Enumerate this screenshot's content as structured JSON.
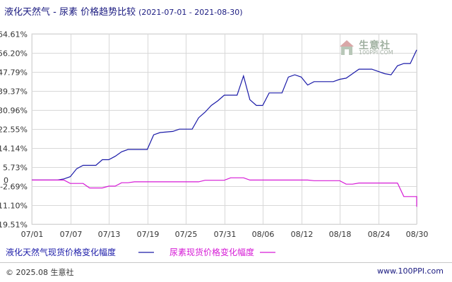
{
  "header": {
    "title": "液化天然气 - 尿素 价格趋势比较",
    "date_range": "(2021-07-01 - 2021-08-30)"
  },
  "watermark": {
    "name": "生意社",
    "url": "100PPI.COM"
  },
  "footer": {
    "copyright": "© 2025.08 生意社",
    "site": "www.100PPI.com"
  },
  "colors": {
    "series1": "#1a1aa8",
    "series2": "#d61ad6",
    "grid": "#d8d8d8",
    "axis": "#555555"
  },
  "chart_data": {
    "type": "line",
    "xlabel": "",
    "ylabel": "",
    "x_ticks": [
      "07/01",
      "07/07",
      "07/13",
      "07/19",
      "07/25",
      "07/31",
      "08/06",
      "08/12",
      "08/18",
      "08/24",
      "08/30"
    ],
    "y_ticks": [
      "64.61%",
      "56.20%",
      "47.79%",
      "39.37%",
      "30.96%",
      "22.55%",
      "14.14%",
      "5.73%",
      "-2.69%",
      "-11.10%",
      "-19.51%"
    ],
    "y_tick_values": [
      64.61,
      56.2,
      47.79,
      39.37,
      30.96,
      22.55,
      14.14,
      5.73,
      -2.69,
      -11.1,
      -19.51
    ],
    "ylim": [
      -19.51,
      64.61
    ],
    "zero_label": "0",
    "x_range_days": 60,
    "grid": true,
    "legend_position": "bottom",
    "series": [
      {
        "name": "液化天然气现货价格变化幅度",
        "points": [
          [
            0,
            0
          ],
          [
            3,
            0
          ],
          [
            4,
            0
          ],
          [
            5,
            0.5
          ],
          [
            6,
            1.5
          ],
          [
            7,
            5
          ],
          [
            8,
            6.5
          ],
          [
            10,
            6.5
          ],
          [
            11,
            9
          ],
          [
            12,
            9
          ],
          [
            13,
            10.5
          ],
          [
            14,
            12.5
          ],
          [
            15,
            13.5
          ],
          [
            18,
            13.5
          ],
          [
            19,
            20
          ],
          [
            20,
            21
          ],
          [
            22,
            21.5
          ],
          [
            23,
            22.5
          ],
          [
            25,
            22.5
          ],
          [
            26,
            27.5
          ],
          [
            27,
            30
          ],
          [
            28,
            33
          ],
          [
            29,
            35
          ],
          [
            30,
            37.5
          ],
          [
            32,
            37.5
          ],
          [
            33,
            46
          ],
          [
            34,
            35.5
          ],
          [
            35,
            33
          ],
          [
            36,
            33
          ],
          [
            37,
            38.5
          ],
          [
            39,
            38.5
          ],
          [
            40,
            45.5
          ],
          [
            41,
            46.5
          ],
          [
            42,
            45.5
          ],
          [
            43,
            42
          ],
          [
            44,
            43.5
          ],
          [
            47,
            43.5
          ],
          [
            48,
            44.5
          ],
          [
            49,
            45
          ],
          [
            50,
            47
          ],
          [
            51,
            49
          ],
          [
            53,
            49
          ],
          [
            54,
            48
          ],
          [
            55,
            47
          ],
          [
            56,
            46.5
          ],
          [
            57,
            50.5
          ],
          [
            58,
            51.5
          ],
          [
            59,
            51.5
          ],
          [
            60,
            57.5
          ]
        ]
      },
      {
        "name": "尿素现货价格变化幅度",
        "points": [
          [
            0,
            0
          ],
          [
            5,
            0
          ],
          [
            6,
            -1.5
          ],
          [
            8,
            -1.5
          ],
          [
            9,
            -3.5
          ],
          [
            11,
            -3.5
          ],
          [
            12,
            -2.7
          ],
          [
            13,
            -2.7
          ],
          [
            14,
            -1.2
          ],
          [
            15,
            -1.2
          ],
          [
            16,
            -0.8
          ],
          [
            26,
            -0.8
          ],
          [
            27,
            -0.1
          ],
          [
            30,
            -0.1
          ],
          [
            31,
            1
          ],
          [
            33,
            1
          ],
          [
            34,
            0
          ],
          [
            43,
            0
          ],
          [
            44,
            -0.3
          ],
          [
            48,
            -0.3
          ],
          [
            49,
            -1.8
          ],
          [
            50,
            -1.8
          ],
          [
            51,
            -1.3
          ],
          [
            57,
            -1.3
          ],
          [
            58,
            -7.3
          ],
          [
            62,
            -7.3
          ],
          [
            63,
            -11.8
          ]
        ]
      }
    ]
  }
}
